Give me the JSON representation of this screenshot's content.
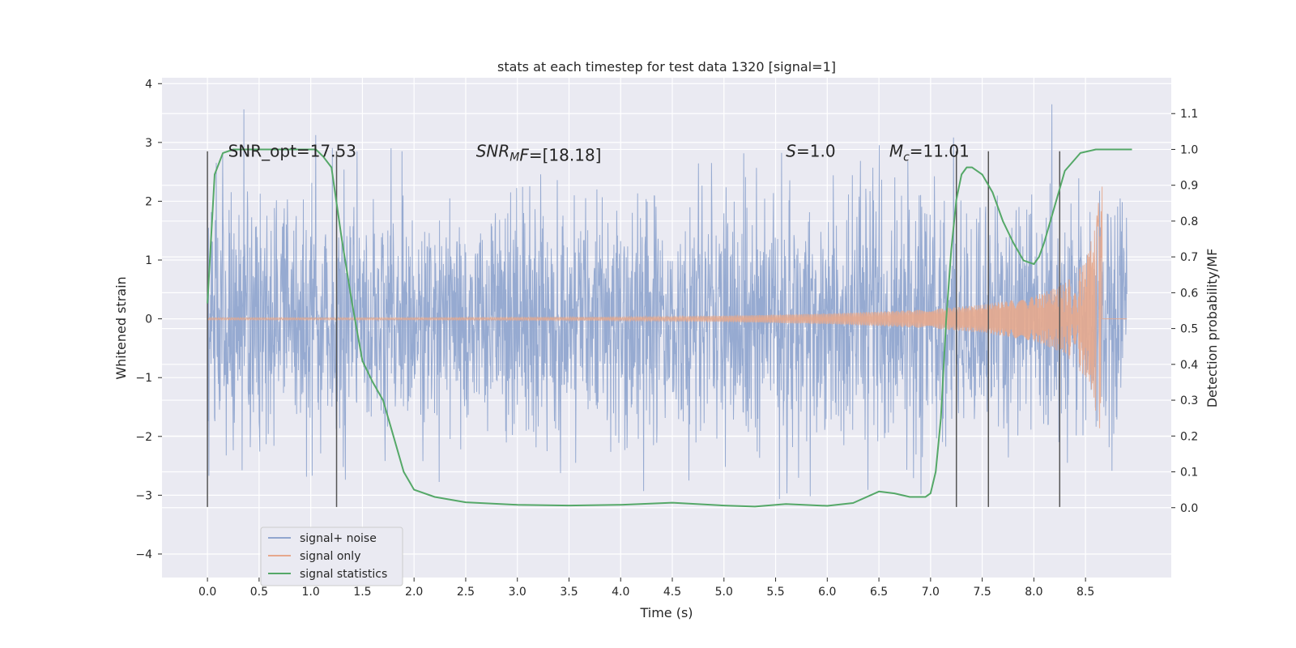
{
  "chart_data": {
    "type": "line",
    "title": "stats at each timestep for test data 1320 [signal=1]",
    "xlabel": "Time (s)",
    "ylabel": "Whitened strain",
    "y2label": "Detection probability/MF",
    "xlim": [
      -0.44,
      9.33
    ],
    "ylim": [
      -4.4,
      4.1
    ],
    "y2lim": [
      -0.195,
      1.2
    ],
    "xticks": [
      0.0,
      0.5,
      1.0,
      1.5,
      2.0,
      2.5,
      3.0,
      3.5,
      4.0,
      4.5,
      5.0,
      5.5,
      6.0,
      6.5,
      7.0,
      7.5,
      8.0,
      8.5
    ],
    "xtick_labels": [
      "0.0",
      "0.5",
      "1.0",
      "1.5",
      "2.0",
      "2.5",
      "3.0",
      "3.5",
      "4.0",
      "4.5",
      "5.0",
      "5.5",
      "6.0",
      "6.5",
      "7.0",
      "7.5",
      "8.0",
      "8.5"
    ],
    "yticks": [
      -4,
      -3,
      -2,
      -1,
      0,
      1,
      2,
      3,
      4
    ],
    "ytick_labels": [
      "−4",
      "−3",
      "−2",
      "−1",
      "0",
      "1",
      "2",
      "3",
      "4"
    ],
    "y2ticks": [
      0.0,
      0.1,
      0.2,
      0.3,
      0.4,
      0.5,
      0.6,
      0.7,
      0.8,
      0.9,
      1.0,
      1.1
    ],
    "y2tick_labels": [
      "0.0",
      "0.1",
      "0.2",
      "0.3",
      "0.4",
      "0.5",
      "0.6",
      "0.7",
      "0.8",
      "0.9",
      "1.0",
      "1.1"
    ],
    "grid": true,
    "legend_position": "lower-left",
    "noise": {
      "t_start": 0.0,
      "t_end": 8.9,
      "amplitude_envelope": 1.1,
      "max": 3.67,
      "min": -4.0
    },
    "chirp": {
      "t_end": 8.66,
      "envelope": [
        {
          "t": 0.0,
          "a": 0.02
        },
        {
          "t": 2.0,
          "a": 0.02
        },
        {
          "t": 4.0,
          "a": 0.03
        },
        {
          "t": 5.0,
          "a": 0.05
        },
        {
          "t": 6.0,
          "a": 0.09
        },
        {
          "t": 7.0,
          "a": 0.16
        },
        {
          "t": 7.5,
          "a": 0.24
        },
        {
          "t": 8.0,
          "a": 0.38
        },
        {
          "t": 8.3,
          "a": 0.6
        },
        {
          "t": 8.5,
          "a": 1.0
        },
        {
          "t": 8.6,
          "a": 1.6
        },
        {
          "t": 8.66,
          "a": 2.5
        }
      ]
    },
    "vertical_lines": [
      {
        "x": 0.0,
        "y_range": [
          -3.2,
          2.85
        ]
      },
      {
        "x": 1.25,
        "y_range": [
          -3.2,
          2.85
        ]
      },
      {
        "x": 7.25,
        "y_range": [
          -3.2,
          2.85
        ]
      },
      {
        "x": 7.56,
        "y_range": [
          -3.2,
          2.85
        ]
      },
      {
        "x": 8.25,
        "y_range": [
          -3.2,
          2.85
        ]
      }
    ],
    "series": [
      {
        "name": "signal+ noise",
        "color": "#91a6cf"
      },
      {
        "name": "signal only",
        "color": "#e6a88d"
      },
      {
        "name": "signal statistics",
        "color": "#55a868",
        "axis": "right",
        "x": [
          0.0,
          0.07,
          0.15,
          0.25,
          0.4,
          0.6,
          0.8,
          0.95,
          1.05,
          1.12,
          1.2,
          1.3,
          1.4,
          1.5,
          1.6,
          1.7,
          1.8,
          1.9,
          2.0,
          2.2,
          2.5,
          3.0,
          3.5,
          4.0,
          4.5,
          5.0,
          5.3,
          5.6,
          6.0,
          6.25,
          6.5,
          6.65,
          6.8,
          6.95,
          7.0,
          7.05,
          7.1,
          7.15,
          7.2,
          7.25,
          7.3,
          7.35,
          7.4,
          7.5,
          7.6,
          7.7,
          7.8,
          7.9,
          8.0,
          8.05,
          8.1,
          8.2,
          8.3,
          8.45,
          8.6,
          8.75,
          8.95
        ],
        "y": [
          0.57,
          0.93,
          0.99,
          1.0,
          1.0,
          1.0,
          1.0,
          1.0,
          1.0,
          0.98,
          0.95,
          0.75,
          0.57,
          0.41,
          0.35,
          0.3,
          0.2,
          0.1,
          0.05,
          0.03,
          0.015,
          0.008,
          0.006,
          0.008,
          0.014,
          0.006,
          0.003,
          0.01,
          0.005,
          0.013,
          0.045,
          0.04,
          0.03,
          0.03,
          0.04,
          0.1,
          0.25,
          0.52,
          0.72,
          0.86,
          0.93,
          0.95,
          0.95,
          0.93,
          0.88,
          0.8,
          0.74,
          0.69,
          0.68,
          0.7,
          0.74,
          0.84,
          0.94,
          0.99,
          1.0,
          1.0,
          1.0
        ]
      }
    ],
    "annotations": [
      {
        "x": 0.2,
        "y2": 0.98,
        "parts": [
          {
            "text": "SNR_opt=17.53",
            "style": "normal"
          }
        ]
      },
      {
        "x": 2.6,
        "y2": 0.98,
        "parts": [
          {
            "text": "SNR",
            "style": "italic"
          },
          {
            "text": "M",
            "style": "italic-sub"
          },
          {
            "text": "F",
            "style": "italic"
          },
          {
            "text": "=[18.18]",
            "style": "normal"
          }
        ]
      },
      {
        "x": 5.6,
        "y2": 0.98,
        "parts": [
          {
            "text": "S",
            "style": "italic"
          },
          {
            "text": "=1.0",
            "style": "normal"
          }
        ]
      },
      {
        "x": 6.6,
        "y2": 0.98,
        "parts": [
          {
            "text": "M",
            "style": "italic"
          },
          {
            "text": "c",
            "style": "italic-sub"
          },
          {
            "text": "=11.01",
            "style": "normal"
          }
        ]
      }
    ]
  }
}
